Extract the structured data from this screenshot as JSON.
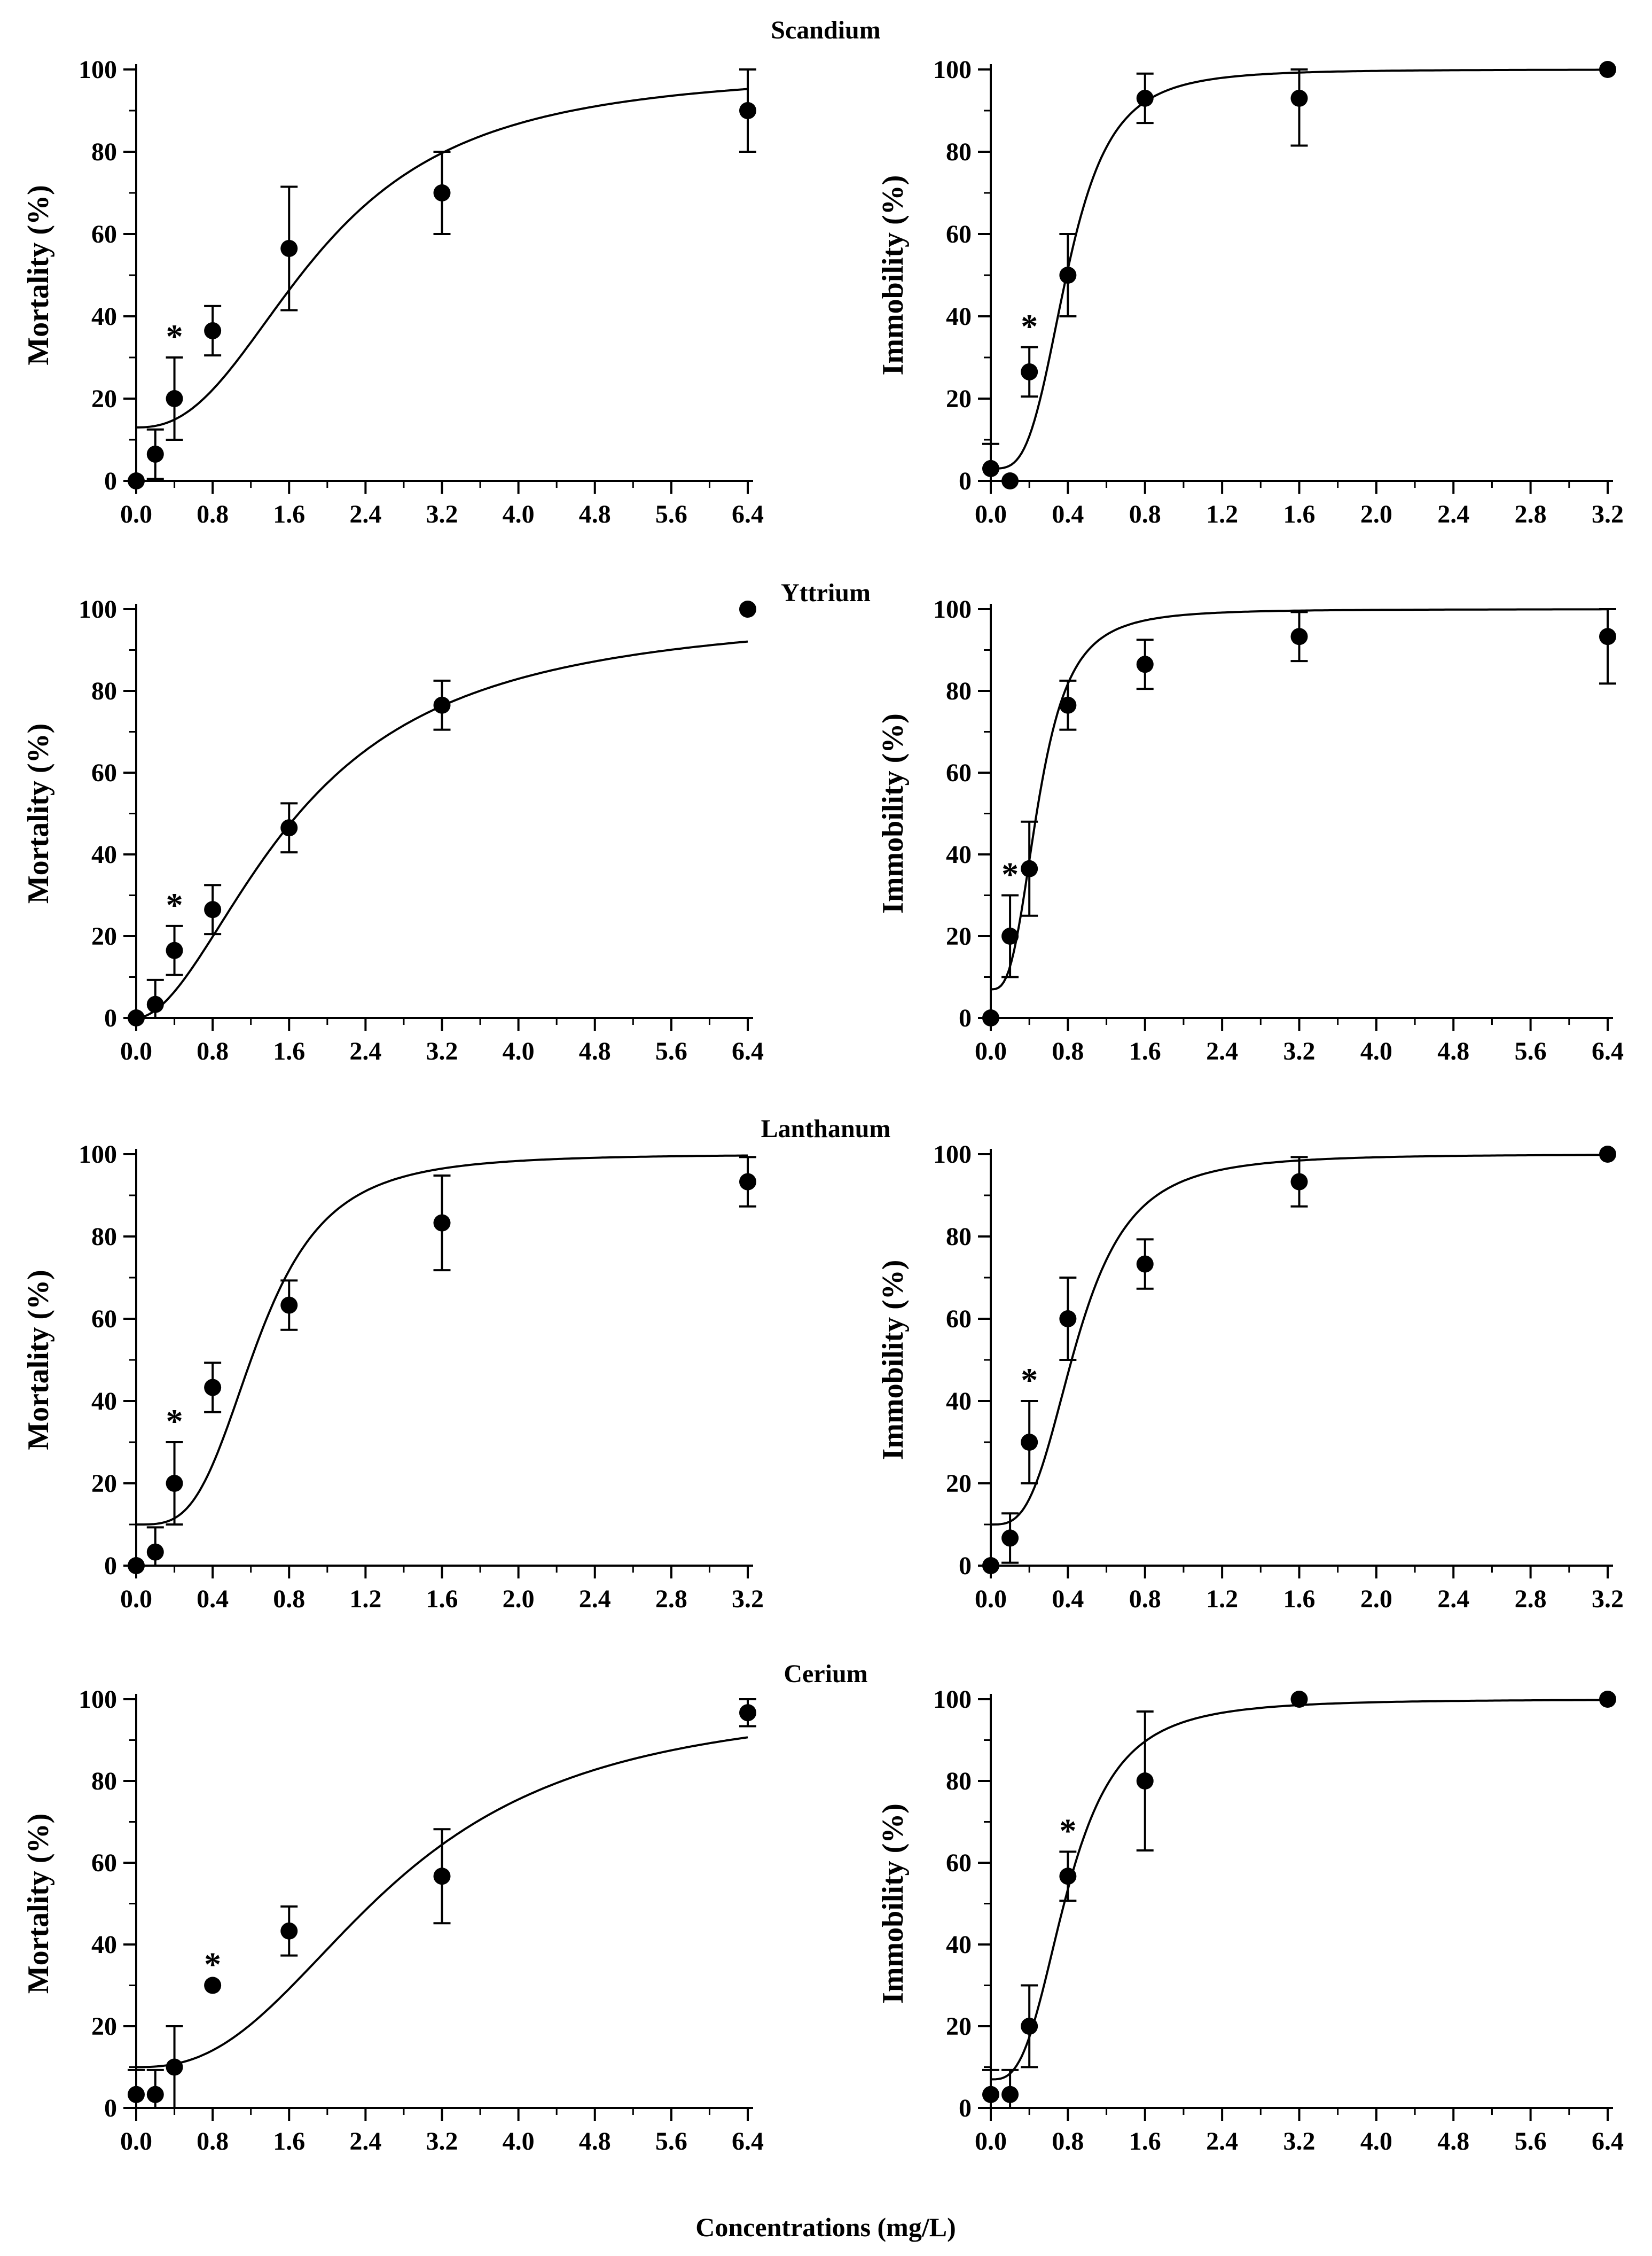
{
  "figure": {
    "xlabel": "Concentrations (mg/L)",
    "colors": {
      "ink": "#000000",
      "background": "#ffffff"
    }
  },
  "rows": [
    {
      "title": "Scandium"
    },
    {
      "title": "Yttrium"
    },
    {
      "title": "Lanthanum"
    },
    {
      "title": "Cerium"
    }
  ],
  "chart_data": [
    {
      "type": "scatter",
      "row": 0,
      "col": 0,
      "element": "Scandium",
      "ylabel": "Mortality (%)",
      "xlabel": "",
      "xlim": [
        0,
        6.4
      ],
      "ylim": [
        0,
        100
      ],
      "xticks": [
        "0.0",
        "0.8",
        "1.6",
        "2.4",
        "3.2",
        "4.0",
        "4.8",
        "5.6",
        "6.4"
      ],
      "yticks": [
        "0",
        "20",
        "40",
        "60",
        "80",
        "100"
      ],
      "x": [
        0,
        0.2,
        0.4,
        0.8,
        1.6,
        3.2,
        6.4
      ],
      "y": [
        0,
        6.5,
        20,
        36.5,
        56.5,
        70,
        90
      ],
      "err": [
        0,
        6,
        10,
        6,
        15,
        10,
        10
      ],
      "star": {
        "x": 0.4,
        "label": "*"
      },
      "fit": {
        "ec50": 1.95,
        "hill": 2.4,
        "bottom": 0,
        "top": 100,
        "offset": 13
      }
    },
    {
      "type": "scatter",
      "row": 0,
      "col": 1,
      "element": "Scandium",
      "ylabel": "Immobility (%)",
      "xlabel": "",
      "xlim": [
        0,
        3.2
      ],
      "ylim": [
        0,
        100
      ],
      "xticks": [
        "0.0",
        "0.4",
        "0.8",
        "1.2",
        "1.6",
        "2.0",
        "2.4",
        "2.8",
        "3.2"
      ],
      "yticks": [
        "0",
        "20",
        "40",
        "60",
        "80",
        "100"
      ],
      "x": [
        0,
        0.1,
        0.2,
        0.4,
        0.8,
        1.6,
        3.2
      ],
      "y": [
        3,
        0,
        26.5,
        50,
        93,
        93,
        100
      ],
      "err": [
        6,
        0,
        6,
        10,
        6,
        11.5,
        0
      ],
      "star": {
        "x": 0.2,
        "label": "*"
      },
      "fit": {
        "ec50": 0.4,
        "hill": 3.5,
        "bottom": 0,
        "top": 100,
        "offset": 3
      }
    },
    {
      "type": "scatter",
      "row": 1,
      "col": 0,
      "element": "Yttrium",
      "ylabel": "Mortality (%)",
      "xlabel": "",
      "xlim": [
        0,
        6.4
      ],
      "ylim": [
        0,
        100
      ],
      "xticks": [
        "0.0",
        "0.8",
        "1.6",
        "2.4",
        "3.2",
        "4.0",
        "4.8",
        "5.6",
        "6.4"
      ],
      "yticks": [
        "0",
        "20",
        "40",
        "60",
        "80",
        "100"
      ],
      "x": [
        0,
        0.2,
        0.4,
        0.8,
        1.6,
        3.2,
        6.4
      ],
      "y": [
        0,
        3.3,
        16.5,
        26.5,
        46.5,
        76.5,
        100
      ],
      "err": [
        0,
        6,
        6,
        6,
        6,
        6,
        0
      ],
      "star": {
        "x": 0.4,
        "label": "*"
      },
      "fit": {
        "ec50": 1.7,
        "hill": 1.85,
        "bottom": 0,
        "top": 100,
        "offset": 0
      }
    },
    {
      "type": "scatter",
      "row": 1,
      "col": 1,
      "element": "Yttrium",
      "ylabel": "Immobility (%)",
      "xlabel": "",
      "xlim": [
        0,
        6.4
      ],
      "ylim": [
        0,
        100
      ],
      "xticks": [
        "0.0",
        "0.8",
        "1.6",
        "2.4",
        "3.2",
        "4.0",
        "4.8",
        "5.6",
        "6.4"
      ],
      "yticks": [
        "0",
        "20",
        "40",
        "60",
        "80",
        "100"
      ],
      "x": [
        0,
        0.2,
        0.4,
        0.8,
        1.6,
        3.2,
        6.4
      ],
      "y": [
        0,
        20,
        36.5,
        76.5,
        86.5,
        93.3,
        93.3
      ],
      "err": [
        0,
        10,
        11.5,
        6,
        6,
        6,
        11.5
      ],
      "star": {
        "x": 0.2,
        "label": "*"
      },
      "fit": {
        "ec50": 0.5,
        "hill": 3,
        "bottom": 0,
        "top": 100,
        "offset": 7
      }
    },
    {
      "type": "scatter",
      "row": 2,
      "col": 0,
      "element": "Lanthanum",
      "ylabel": "Mortality (%)",
      "xlabel": "",
      "xlim": [
        0,
        3.2
      ],
      "ylim": [
        0,
        100
      ],
      "xticks": [
        "0.0",
        "0.4",
        "0.8",
        "1.2",
        "1.6",
        "2.0",
        "2.4",
        "2.8",
        "3.2"
      ],
      "yticks": [
        "0",
        "20",
        "40",
        "60",
        "80",
        "100"
      ],
      "x": [
        0,
        0.1,
        0.2,
        0.4,
        0.8,
        1.6,
        3.2
      ],
      "y": [
        0,
        3.3,
        20,
        43.3,
        63.3,
        83.3,
        93.3
      ],
      "err": [
        0,
        6,
        10,
        6,
        6,
        11.5,
        6
      ],
      "star": {
        "x": 0.2,
        "label": "*"
      },
      "fit": {
        "ec50": 0.64,
        "hill": 3.5,
        "bottom": 0,
        "top": 100,
        "offset": 10
      }
    },
    {
      "type": "scatter",
      "row": 2,
      "col": 1,
      "element": "Lanthanum",
      "ylabel": "Immobility (%)",
      "xlabel": "",
      "xlim": [
        0,
        3.2
      ],
      "ylim": [
        0,
        100
      ],
      "xticks": [
        "0.0",
        "0.4",
        "0.8",
        "1.2",
        "1.6",
        "2.0",
        "2.4",
        "2.8",
        "3.2"
      ],
      "yticks": [
        "0",
        "20",
        "40",
        "60",
        "80",
        "100"
      ],
      "x": [
        0,
        0.1,
        0.2,
        0.4,
        0.8,
        1.6,
        3.2
      ],
      "y": [
        0,
        6.7,
        30,
        60,
        73.3,
        93.3,
        100
      ],
      "err": [
        0,
        6,
        10,
        10,
        6,
        6,
        0
      ],
      "star": {
        "x": 0.2,
        "label": "*"
      },
      "fit": {
        "ec50": 0.45,
        "hill": 3.2,
        "bottom": 0,
        "top": 100,
        "offset": 10
      }
    },
    {
      "type": "scatter",
      "row": 3,
      "col": 0,
      "element": "Cerium",
      "ylabel": "Mortality (%)",
      "xlabel": "",
      "xlim": [
        0,
        6.4
      ],
      "ylim": [
        0,
        100
      ],
      "xticks": [
        "0.0",
        "0.8",
        "1.6",
        "2.4",
        "3.2",
        "4.0",
        "4.8",
        "5.6",
        "6.4"
      ],
      "yticks": [
        "0",
        "20",
        "40",
        "60",
        "80",
        "100"
      ],
      "x": [
        0,
        0.2,
        0.4,
        0.8,
        1.6,
        3.2,
        6.4
      ],
      "y": [
        3.3,
        3.3,
        10,
        30,
        43.3,
        56.7,
        96.7
      ],
      "err": [
        6,
        6,
        10,
        0,
        6,
        11.5,
        3.3
      ],
      "star": {
        "x": 0.8,
        "label": "*"
      },
      "fit": {
        "ec50": 2.7,
        "hill": 2.5,
        "bottom": 0,
        "top": 100,
        "offset": 10
      }
    },
    {
      "type": "scatter",
      "row": 3,
      "col": 1,
      "element": "Cerium",
      "ylabel": "Immobility (%)",
      "xlabel": "",
      "xlim": [
        0,
        6.4
      ],
      "ylim": [
        0,
        100
      ],
      "xticks": [
        "0.0",
        "0.8",
        "1.6",
        "2.4",
        "3.2",
        "4.0",
        "4.8",
        "5.6",
        "6.4"
      ],
      "yticks": [
        "0",
        "20",
        "40",
        "60",
        "80",
        "100"
      ],
      "x": [
        0,
        0.2,
        0.4,
        0.8,
        1.6,
        3.2,
        6.4
      ],
      "y": [
        3.3,
        3.3,
        20,
        56.7,
        80,
        100,
        100
      ],
      "err": [
        6,
        6,
        10,
        6,
        17,
        0,
        0
      ],
      "star": {
        "x": 0.8,
        "label": "*"
      },
      "fit": {
        "ec50": 0.8,
        "hill": 3.0,
        "bottom": 0,
        "top": 100,
        "offset": 7
      }
    }
  ]
}
